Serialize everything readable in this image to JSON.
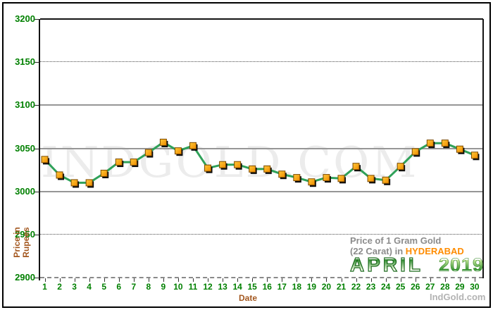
{
  "watermark": {
    "text": "INDGOLD.COM"
  },
  "branding": {
    "site": "IndGold.com"
  },
  "caption": {
    "line1": "Price of 1 Gram Gold",
    "line2_prefix": "(22 Carat) in ",
    "city": "HYDERABAD",
    "month": "APRIL",
    "year": "2019"
  },
  "axes": {
    "x_label": "Date",
    "y_label_line1": "Price in",
    "y_label_line2": "Rupees"
  },
  "colors": {
    "tick_label_green": "#008000",
    "axis_title_brown": "#a3571f",
    "line_green": "#2fa159",
    "marker_orange": "#ffaa00",
    "city_orange": "#ff8c00",
    "caption_gray": "#8c8c8c"
  },
  "chart_data": {
    "type": "line",
    "title": "Price of 1 Gram Gold (22 Carat) in HYDERABAD - APRIL 2019",
    "xlabel": "Date",
    "ylabel": "Price in Rupees",
    "x": [
      1,
      2,
      3,
      4,
      5,
      6,
      7,
      8,
      9,
      10,
      11,
      12,
      13,
      14,
      15,
      16,
      17,
      18,
      19,
      20,
      21,
      22,
      23,
      24,
      25,
      26,
      27,
      28,
      29,
      30
    ],
    "values": [
      3037,
      3019,
      3010,
      3010,
      3021,
      3034,
      3034,
      3045,
      3057,
      3047,
      3053,
      3027,
      3031,
      3031,
      3026,
      3026,
      3020,
      3016,
      3011,
      3016,
      3015,
      3029,
      3015,
      3013,
      3029,
      3046,
      3056,
      3056,
      3049,
      3042
    ],
    "ylim": [
      2900,
      3200
    ],
    "ytick_step": 50,
    "grid": true,
    "legend": "none",
    "gridline_styles": {
      "3200": "top",
      "3150": "dotted",
      "3100": "solid",
      "3050": "solid",
      "3000": "solid",
      "2950": "dotted",
      "2900": "axis"
    },
    "line_color": "#2fa159",
    "marker_shape": "square",
    "marker_color": "#ffaa00"
  }
}
